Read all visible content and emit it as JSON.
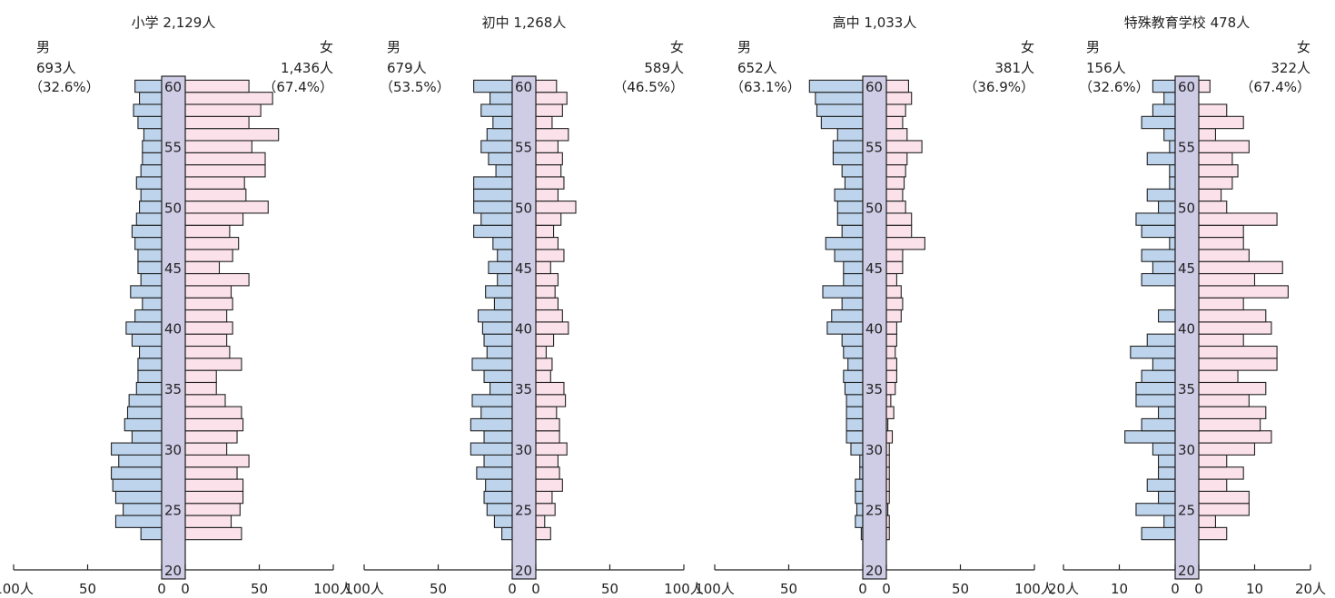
{
  "chart_data": [
    {
      "type": "bar",
      "title": "小学 2,129人",
      "male": {
        "label": "男",
        "count": "693人",
        "pct": "（32.6%）"
      },
      "female": {
        "label": "女",
        "count": "1,436人",
        "pct": "（67.4%）"
      },
      "max": 100,
      "ticks": [
        {
          "v": 100,
          "t": "100人"
        },
        {
          "v": 50,
          "t": "50"
        },
        {
          "v": 0,
          "t": "0"
        }
      ],
      "ages": [
        23,
        24,
        25,
        26,
        27,
        28,
        29,
        30,
        31,
        32,
        33,
        34,
        35,
        36,
        37,
        38,
        39,
        40,
        41,
        42,
        43,
        44,
        45,
        46,
        47,
        48,
        49,
        50,
        51,
        52,
        53,
        54,
        55,
        56,
        57,
        58,
        59,
        60
      ],
      "male_values": [
        14,
        31,
        26,
        31,
        33,
        34,
        29,
        34,
        20,
        25,
        23,
        22,
        17,
        16,
        16,
        15,
        20,
        24,
        18,
        13,
        21,
        14,
        16,
        16,
        18,
        20,
        17,
        15,
        14,
        17,
        14,
        13,
        13,
        12,
        16,
        19,
        15,
        18
      ],
      "female_values": [
        38,
        31,
        37,
        39,
        39,
        35,
        43,
        28,
        35,
        39,
        38,
        27,
        21,
        21,
        38,
        30,
        28,
        32,
        28,
        32,
        31,
        43,
        23,
        32,
        36,
        30,
        39,
        56,
        41,
        40,
        54,
        54,
        45,
        63,
        43,
        51,
        59,
        43
      ]
    },
    {
      "type": "bar",
      "title": "初中 1,268人",
      "male": {
        "label": "男",
        "count": "679人",
        "pct": "（53.5%）"
      },
      "female": {
        "label": "女",
        "count": "589人",
        "pct": "（46.5%）"
      },
      "max": 100,
      "ticks": [
        {
          "v": 100,
          "t": "100人"
        },
        {
          "v": 50,
          "t": "50"
        },
        {
          "v": 0,
          "t": "0"
        }
      ],
      "ages": [
        23,
        24,
        25,
        26,
        27,
        28,
        29,
        30,
        31,
        32,
        33,
        34,
        35,
        36,
        37,
        38,
        39,
        40,
        41,
        42,
        43,
        44,
        45,
        46,
        47,
        48,
        49,
        50,
        51,
        52,
        53,
        54,
        55,
        56,
        57,
        58,
        59,
        60
      ],
      "male_values": [
        7,
        12,
        17,
        19,
        18,
        24,
        19,
        28,
        19,
        28,
        21,
        27,
        15,
        19,
        27,
        17,
        19,
        20,
        23,
        12,
        18,
        10,
        16,
        10,
        13,
        26,
        21,
        26,
        26,
        26,
        11,
        16,
        21,
        17,
        13,
        21,
        15,
        26
      ],
      "female_values": [
        10,
        6,
        13,
        11,
        18,
        16,
        15,
        21,
        16,
        16,
        14,
        20,
        19,
        10,
        11,
        7,
        12,
        22,
        18,
        15,
        13,
        15,
        10,
        19,
        15,
        12,
        17,
        27,
        15,
        19,
        17,
        18,
        15,
        22,
        11,
        18,
        21,
        14
      ]
    },
    {
      "type": "bar",
      "title": "高中 1,033人",
      "male": {
        "label": "男",
        "count": "652人",
        "pct": "（63.1%）"
      },
      "female": {
        "label": "女",
        "count": "381人",
        "pct": "（36.9%）"
      },
      "max": 100,
      "ticks": [
        {
          "v": 100,
          "t": "100人"
        },
        {
          "v": 50,
          "t": "50"
        },
        {
          "v": 0,
          "t": "0"
        }
      ],
      "ages": [
        23,
        24,
        25,
        26,
        27,
        28,
        29,
        30,
        31,
        32,
        33,
        34,
        35,
        36,
        37,
        38,
        39,
        40,
        41,
        42,
        43,
        44,
        45,
        46,
        47,
        48,
        49,
        50,
        51,
        52,
        53,
        54,
        55,
        56,
        57,
        58,
        59,
        60
      ],
      "male_values": [
        1,
        5,
        4,
        5,
        5,
        2,
        2,
        8,
        11,
        11,
        11,
        11,
        12,
        13,
        10,
        13,
        14,
        24,
        21,
        14,
        27,
        13,
        13,
        19,
        25,
        14,
        17,
        17,
        19,
        12,
        14,
        20,
        20,
        17,
        28,
        31,
        32,
        36
      ],
      "female_values": [
        2,
        2,
        1,
        2,
        2,
        2,
        2,
        2,
        4,
        1,
        5,
        3,
        6,
        7,
        7,
        6,
        7,
        7,
        10,
        11,
        10,
        7,
        11,
        11,
        26,
        17,
        17,
        13,
        11,
        12,
        13,
        14,
        24,
        14,
        11,
        13,
        17,
        15
      ]
    },
    {
      "type": "bar",
      "title": "特殊教育学校 478人",
      "male": {
        "label": "男",
        "count": "156人",
        "pct": "（32.6%）"
      },
      "female": {
        "label": "女",
        "count": "322人",
        "pct": "（67.4%）"
      },
      "max": 20,
      "ticks": [
        {
          "v": 20,
          "t": "20人"
        },
        {
          "v": 10,
          "t": "10"
        },
        {
          "v": 0,
          "t": "0"
        }
      ],
      "ages": [
        23,
        24,
        25,
        26,
        27,
        28,
        29,
        30,
        31,
        32,
        33,
        34,
        35,
        36,
        37,
        38,
        39,
        40,
        41,
        42,
        43,
        44,
        45,
        46,
        47,
        48,
        49,
        50,
        51,
        52,
        53,
        54,
        55,
        56,
        57,
        58,
        59,
        60
      ],
      "male_values": [
        6,
        2,
        7,
        3,
        5,
        3,
        3,
        4,
        9,
        6,
        3,
        7,
        7,
        6,
        4,
        8,
        5,
        0,
        3,
        0,
        0,
        6,
        4,
        6,
        1,
        6,
        7,
        3,
        5,
        1,
        1,
        5,
        1,
        2,
        6,
        4,
        2,
        4
      ],
      "female_values": [
        5,
        3,
        9,
        9,
        5,
        8,
        5,
        10,
        13,
        11,
        12,
        9,
        12,
        7,
        14,
        14,
        8,
        13,
        12,
        8,
        16,
        10,
        15,
        9,
        8,
        8,
        14,
        5,
        4,
        6,
        7,
        6,
        9,
        3,
        8,
        5,
        0,
        2
      ]
    }
  ],
  "axis_age_labels": [
    "20",
    "25",
    "30",
    "35",
    "40",
    "45",
    "50",
    "55",
    "60"
  ],
  "colors": {
    "male": "#bdd4ec",
    "female": "#fbe1ea",
    "spine": "#cfcce6",
    "line": "#222222"
  }
}
